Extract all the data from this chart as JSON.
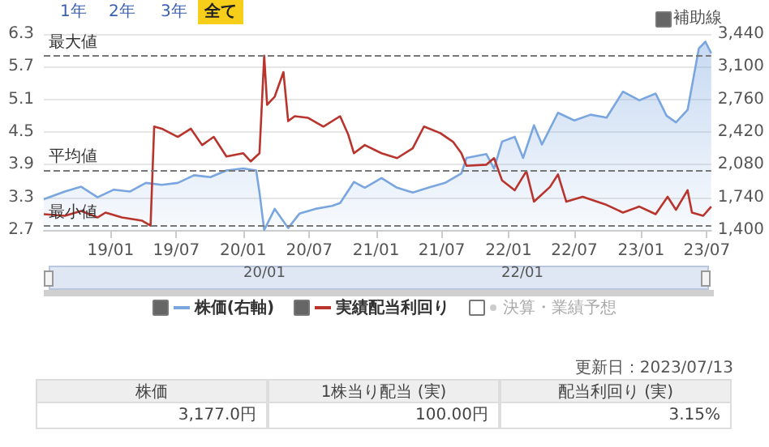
{
  "chart_data": {
    "type": "line",
    "xlim": [
      "2018-07-01",
      "2023-07-13"
    ],
    "xticks": [
      {
        "value": "2019-01-01",
        "label": "19/01"
      },
      {
        "value": "2019-07-01",
        "label": "19/07"
      },
      {
        "value": "2020-01-01",
        "label": "20/01"
      },
      {
        "value": "2020-07-01",
        "label": "20/07"
      },
      {
        "value": "2021-01-01",
        "label": "21/01"
      },
      {
        "value": "2021-07-01",
        "label": "21/07"
      },
      {
        "value": "2022-01-01",
        "label": "22/01"
      },
      {
        "value": "2022-07-01",
        "label": "22/07"
      },
      {
        "value": "2023-01-01",
        "label": "23/01"
      },
      {
        "value": "2023-07-01",
        "label": "23/07"
      }
    ],
    "ylim": [
      2.7,
      6.3
    ],
    "yticks": [
      2.7,
      3.3,
      3.9,
      4.5,
      5.1,
      5.7,
      6.3
    ],
    "y2lim": [
      1400,
      3440
    ],
    "y2ticks": [
      {
        "value": 1400,
        "label": "1,400"
      },
      {
        "value": 1740,
        "label": "1,740"
      },
      {
        "value": 2080,
        "label": "2,080"
      },
      {
        "value": 2420,
        "label": "2,420"
      },
      {
        "value": 2760,
        "label": "2,760"
      },
      {
        "value": 3100,
        "label": "3,100"
      },
      {
        "value": 3440,
        "label": "3,440"
      }
    ],
    "grid": "y",
    "legend": "bottom",
    "series": [
      {
        "name": "株価(右軸)",
        "type": "area",
        "axis": "y2",
        "color": "#7aa6e0",
        "x": [
          "2018-07-01",
          "2018-08-28",
          "2018-10-12",
          "2018-11-26",
          "2019-01-10",
          "2019-02-23",
          "2019-04-08",
          "2019-05-22",
          "2019-07-05",
          "2019-08-19",
          "2019-10-03",
          "2019-11-16",
          "2020-01-01",
          "2020-02-06",
          "2020-02-15",
          "2020-02-28",
          "2020-03-28",
          "2020-05-04",
          "2020-06-04",
          "2020-07-18",
          "2020-09-02",
          "2020-09-24",
          "2020-11-01",
          "2020-12-01",
          "2021-01-16",
          "2021-02-28",
          "2021-04-12",
          "2021-05-25",
          "2021-07-10",
          "2021-08-24",
          "2021-09-07",
          "2021-11-01",
          "2021-11-22",
          "2021-12-14",
          "2022-01-18",
          "2022-02-10",
          "2022-03-12",
          "2022-04-03",
          "2022-05-17",
          "2022-07-01",
          "2022-08-15",
          "2022-09-28",
          "2022-11-12",
          "2022-12-27",
          "2023-02-10",
          "2023-03-12",
          "2023-04-07",
          "2023-05-09",
          "2023-06-09",
          "2023-06-27",
          "2023-07-13"
        ],
        "values": [
          1720,
          1800,
          1850,
          1740,
          1820,
          1800,
          1890,
          1870,
          1890,
          1970,
          1950,
          2020,
          2040,
          2020,
          1790,
          1400,
          1620,
          1420,
          1570,
          1620,
          1650,
          1680,
          1900,
          1840,
          1940,
          1840,
          1790,
          1840,
          1890,
          1990,
          2150,
          2190,
          2040,
          2320,
          2370,
          2150,
          2490,
          2290,
          2620,
          2540,
          2600,
          2570,
          2840,
          2750,
          2820,
          2590,
          2520,
          2650,
          3290,
          3360,
          3240
        ]
      },
      {
        "name": "実績配当利回り",
        "color": "#b8342c",
        "x": [
          "2018-07-01",
          "2018-08-28",
          "2018-10-12",
          "2018-11-26",
          "2018-12-18",
          "2019-02-01",
          "2019-03-29",
          "2019-04-21",
          "2019-05-01",
          "2019-05-22",
          "2019-07-05",
          "2019-08-10",
          "2019-09-10",
          "2019-10-12",
          "2019-11-16",
          "2020-01-01",
          "2020-01-22",
          "2020-02-15",
          "2020-02-28",
          "2020-03-07",
          "2020-03-28",
          "2020-04-21",
          "2020-05-04",
          "2020-05-22",
          "2020-06-28",
          "2020-08-09",
          "2020-09-24",
          "2020-10-16",
          "2020-11-01",
          "2020-12-01",
          "2021-01-16",
          "2021-02-28",
          "2021-04-12",
          "2021-05-13",
          "2021-06-27",
          "2021-08-01",
          "2021-08-24",
          "2021-09-07",
          "2021-11-01",
          "2021-11-22",
          "2021-12-14",
          "2022-01-18",
          "2022-02-19",
          "2022-03-12",
          "2022-04-25",
          "2022-05-17",
          "2022-06-09",
          "2022-07-24",
          "2022-09-28",
          "2022-11-12",
          "2022-12-27",
          "2023-02-10",
          "2023-03-15",
          "2023-04-07",
          "2023-05-09",
          "2023-05-21",
          "2023-06-21",
          "2023-07-13"
        ],
        "values": [
          2.99,
          2.96,
          3.05,
          2.93,
          3.02,
          2.93,
          2.87,
          2.78,
          4.6,
          4.56,
          4.41,
          4.56,
          4.26,
          4.41,
          4.05,
          4.11,
          3.96,
          4.11,
          5.9,
          5.0,
          5.15,
          5.6,
          4.7,
          4.79,
          4.76,
          4.6,
          4.79,
          4.46,
          4.11,
          4.26,
          4.11,
          4.02,
          4.2,
          4.6,
          4.48,
          4.32,
          4.11,
          3.88,
          3.9,
          4.02,
          3.61,
          3.43,
          3.78,
          3.22,
          3.49,
          3.72,
          3.22,
          3.31,
          3.16,
          3.02,
          3.13,
          2.99,
          3.31,
          3.07,
          3.43,
          3.02,
          2.96,
          3.13
        ]
      }
    ],
    "ref_lines": [
      {
        "axis": "y",
        "value": 5.9,
        "label": "最大値",
        "color": "#777777",
        "line_style": "dashed"
      },
      {
        "axis": "y",
        "value": 3.8,
        "label": "平均値",
        "color": "#777777",
        "line_style": "dashed"
      },
      {
        "axis": "y",
        "value": 2.78,
        "label": "最小値",
        "color": "#777777",
        "line_style": "dashed"
      }
    ],
    "annotations": [
      "1年",
      "2年",
      "3年",
      "全て",
      "補助線",
      "決算・業績予想",
      "20/01",
      "22/01",
      "更新日：2023/07/13",
      "株価",
      "1株当り配当 (実)",
      "配当利回り (実)",
      "3,177.0円",
      "100.00円",
      "3.15%"
    ]
  }
}
